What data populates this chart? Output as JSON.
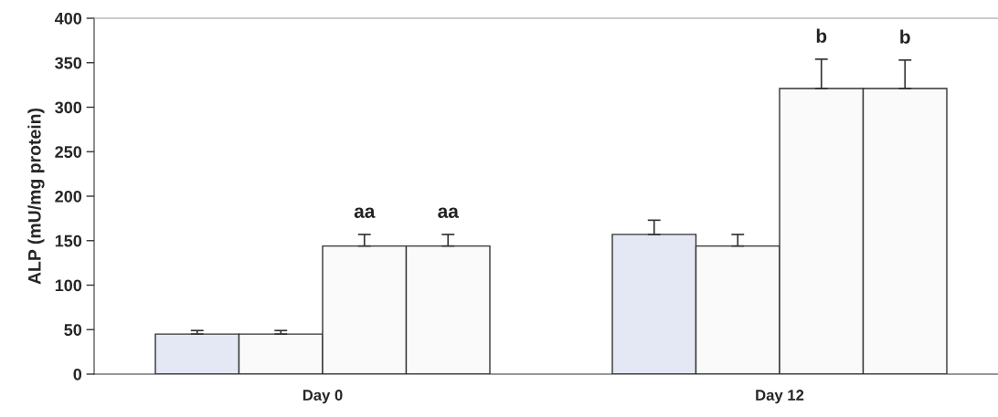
{
  "chart_data": {
    "type": "bar",
    "ylabel": "ALP (mU/mg protein)",
    "categories": [
      "Day 0",
      "Day 12"
    ],
    "series": [
      {
        "color": "#e4e7f4",
        "values": [
          45,
          157
        ],
        "errors": [
          [
            45,
            49
          ],
          [
            157,
            173
          ]
        ]
      },
      {
        "color": "#fafafa",
        "values": [
          45,
          144
        ],
        "errors": [
          [
            45,
            49
          ],
          [
            144,
            157
          ]
        ]
      },
      {
        "color": "#fafafa",
        "values": [
          144,
          321
        ],
        "errors": [
          [
            144,
            157
          ],
          [
            321,
            354
          ]
        ],
        "value_labels": [
          "aa",
          "b"
        ]
      },
      {
        "color": "#fafafa",
        "values": [
          144,
          321
        ],
        "errors": [
          [
            144,
            157
          ],
          [
            321,
            353
          ]
        ],
        "value_labels": [
          "aa",
          "b"
        ]
      }
    ],
    "ylim": [
      0,
      400
    ],
    "yticks": [
      0,
      50,
      100,
      150,
      200,
      250,
      300,
      350,
      400
    ],
    "grid": false,
    "legend": false
  }
}
